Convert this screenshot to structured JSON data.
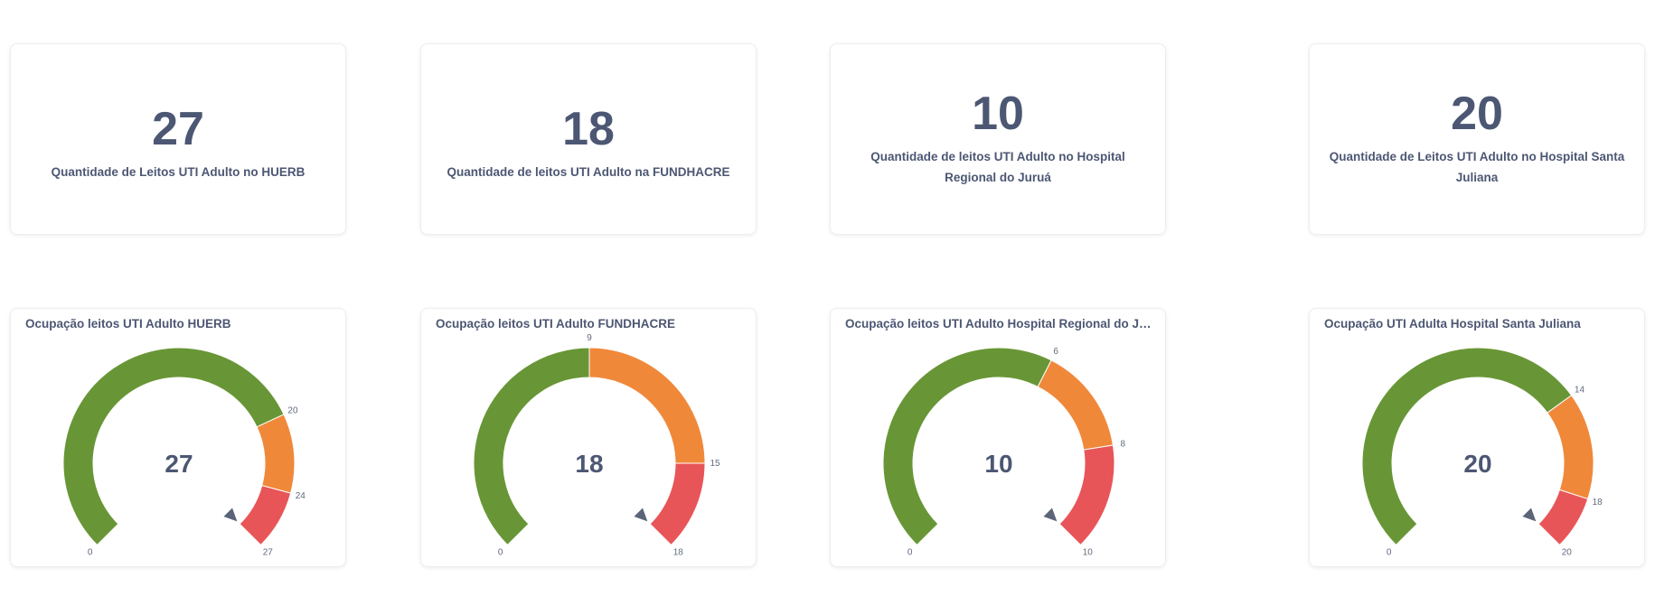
{
  "scalars": [
    {
      "value": "27",
      "label": "Quantidade de Leitos UTI Adulto no HUERB"
    },
    {
      "value": "18",
      "label": "Quantidade de leitos UTI Adulto na FUNDHACRE"
    },
    {
      "value": "10",
      "label": "Quantidade de leitos UTI Adulto no Hospital Regional do Juruá"
    },
    {
      "value": "20",
      "label": "Quantidade de Leitos UTI Adulto no Hospital Santa Juliana"
    }
  ],
  "colors": {
    "green": "#689636",
    "orange": "#f0883a",
    "red": "#e85558",
    "text": "#4c5773",
    "needle": "#5b6478"
  },
  "gauges": [
    {
      "title": "Ocupação leitos UTI Adulto HUERB",
      "value": 27,
      "min": 0,
      "max": 27,
      "segments": [
        {
          "from": 0,
          "to": 20,
          "color": "green"
        },
        {
          "from": 20,
          "to": 24,
          "color": "orange"
        },
        {
          "from": 24,
          "to": 27,
          "color": "red"
        }
      ],
      "ticks": [
        "0",
        "20",
        "24",
        "27"
      ]
    },
    {
      "title": "Ocupação leitos UTI Adulto FUNDHACRE",
      "value": 18,
      "min": 0,
      "max": 18,
      "segments": [
        {
          "from": 0,
          "to": 9,
          "color": "green"
        },
        {
          "from": 9,
          "to": 15,
          "color": "orange"
        },
        {
          "from": 15,
          "to": 18,
          "color": "red"
        }
      ],
      "ticks": [
        "0",
        "9",
        "15",
        "18"
      ]
    },
    {
      "title": "Ocupação leitos UTI Adulto Hospital Regional do Jur...",
      "value": 10,
      "min": 0,
      "max": 10,
      "segments": [
        {
          "from": 0,
          "to": 6,
          "color": "green"
        },
        {
          "from": 6,
          "to": 8,
          "color": "orange"
        },
        {
          "from": 8,
          "to": 10,
          "color": "red"
        }
      ],
      "ticks": [
        "0",
        "6",
        "8",
        "10"
      ]
    },
    {
      "title": "Ocupação UTI Adulta Hospital Santa Juliana",
      "value": 20,
      "min": 0,
      "max": 20,
      "segments": [
        {
          "from": 0,
          "to": 14,
          "color": "green"
        },
        {
          "from": 14,
          "to": 18,
          "color": "orange"
        },
        {
          "from": 18,
          "to": 20,
          "color": "red"
        }
      ],
      "ticks": [
        "0",
        "14",
        "18",
        "20"
      ]
    }
  ]
}
